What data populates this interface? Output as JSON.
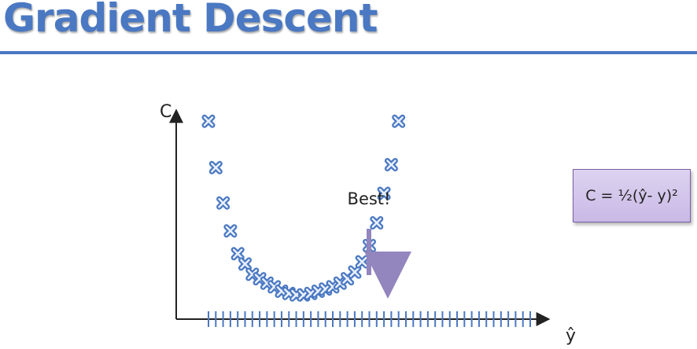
{
  "title": "Gradient Descent",
  "diagram": {
    "y_axis_label": "C",
    "x_axis_label": "ŷ",
    "annotation": "Best!",
    "formula": "C = ½(ŷ- y)²"
  },
  "chart_data": {
    "type": "scatter",
    "x": [
      -20,
      -19,
      -18,
      -17,
      -16,
      -15,
      -14,
      -13,
      -12,
      -11,
      -10,
      -9,
      -8,
      -7,
      -6,
      -5,
      -4,
      -3,
      -2,
      -1,
      0,
      1,
      2,
      3,
      4,
      5,
      6,
      7,
      8,
      9,
      10,
      11,
      12,
      13,
      14,
      15,
      16,
      17,
      18,
      19,
      20,
      21,
      22,
      23,
      24
    ],
    "scatter_points": [
      {
        "x": -20,
        "y": 239
      },
      {
        "x": -19,
        "y": 176
      },
      {
        "x": -18,
        "y": 128
      },
      {
        "x": -17,
        "y": 90
      },
      {
        "x": -16,
        "y": 59
      },
      {
        "x": -15,
        "y": 45
      },
      {
        "x": -14,
        "y": 31
      },
      {
        "x": -13,
        "y": 25
      },
      {
        "x": -12,
        "y": 19
      },
      {
        "x": -11,
        "y": 14
      },
      {
        "x": -10,
        "y": 8
      },
      {
        "x": -9,
        "y": 5
      },
      {
        "x": -8,
        "y": 3
      },
      {
        "x": -7,
        "y": 3
      },
      {
        "x": -6,
        "y": 5
      },
      {
        "x": -5,
        "y": 8
      },
      {
        "x": -4,
        "y": 11
      },
      {
        "x": -3,
        "y": 14
      },
      {
        "x": -2,
        "y": 19
      },
      {
        "x": -1,
        "y": 25
      },
      {
        "x": 0,
        "y": 34
      },
      {
        "x": 1,
        "y": 48
      },
      {
        "x": 2,
        "y": 70
      },
      {
        "x": 3,
        "y": 101
      },
      {
        "x": 4,
        "y": 141
      },
      {
        "x": 5,
        "y": 180
      },
      {
        "x": 6,
        "y": 239
      }
    ],
    "xlabel": "ŷ",
    "ylabel": "C",
    "xlim": [
      -20,
      24
    ],
    "ylim": [
      0,
      250
    ],
    "colors": {
      "points": "#4a78c2",
      "axes": "#222222",
      "arrow": "#9385bd",
      "title": "#4a78c2"
    }
  }
}
